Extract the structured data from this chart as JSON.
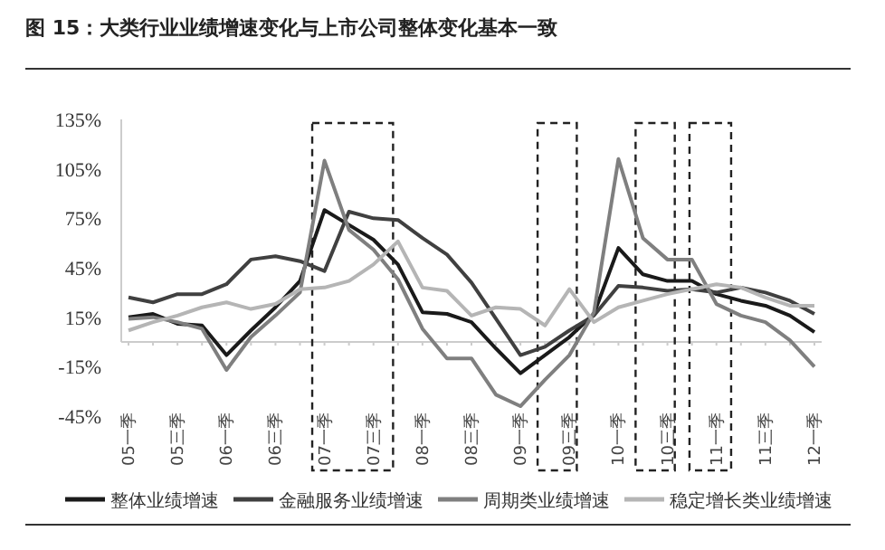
{
  "chart_data": {
    "type": "line",
    "title": "图 15：大类行业业绩增速变化与上市公司整体变化基本一致",
    "categories": [
      "05一季",
      null,
      "05三季",
      null,
      "06一季",
      null,
      "06三季",
      null,
      "07一季",
      null,
      "07三季",
      null,
      "08一季",
      null,
      "08三季",
      null,
      "09一季",
      null,
      "09三季",
      null,
      "10一季",
      null,
      "10三季",
      null,
      "11一季",
      null,
      "11三季",
      null,
      "12一季"
    ],
    "series": [
      {
        "name": "整体业绩增速",
        "color": "#1a1a1a",
        "values": [
          15,
          17,
          11,
          10,
          -8,
          7,
          21,
          37,
          80,
          71,
          62,
          47,
          18,
          17,
          12,
          -4,
          -19,
          -8,
          3,
          17,
          57,
          41,
          37,
          37,
          29,
          25,
          22,
          16,
          6
        ]
      },
      {
        "name": "金融服务业绩增速",
        "color": "#404040",
        "values": [
          27,
          24,
          29,
          29,
          35,
          50,
          52,
          49,
          43,
          79,
          75,
          74,
          63,
          53,
          36,
          14,
          -8,
          -3,
          7,
          16,
          34,
          33,
          31,
          32,
          30,
          33,
          30,
          25,
          17
        ]
      },
      {
        "name": "周期类业绩增速",
        "color": "#7f7f7f",
        "values": [
          14,
          15,
          12,
          8,
          -17,
          3,
          16,
          30,
          110,
          68,
          56,
          38,
          8,
          -10,
          -10,
          -32,
          -39,
          -23,
          -8,
          18,
          111,
          63,
          50,
          50,
          23,
          16,
          12,
          1,
          -15
        ]
      },
      {
        "name": "稳定增长类业绩增速",
        "color": "#b5b5b5",
        "values": [
          7,
          12,
          16,
          21,
          24,
          20,
          23,
          32,
          33,
          37,
          47,
          61,
          33,
          31,
          16,
          21,
          20,
          10,
          32,
          12,
          21,
          25,
          29,
          32,
          35,
          33,
          27,
          22,
          22
        ]
      }
    ],
    "ylim": [
      -45,
      135
    ],
    "yticks": [
      {
        "value": -45,
        "label": "-45%"
      },
      {
        "value": -15,
        "label": "-15%"
      },
      {
        "value": 15,
        "label": "15%"
      },
      {
        "value": 45,
        "label": "45%"
      },
      {
        "value": 75,
        "label": "75%"
      },
      {
        "value": 105,
        "label": "105%"
      },
      {
        "value": 135,
        "label": "135%"
      }
    ],
    "legend": "bottom",
    "grid": false,
    "marker": "none",
    "line_style": "solid"
  }
}
